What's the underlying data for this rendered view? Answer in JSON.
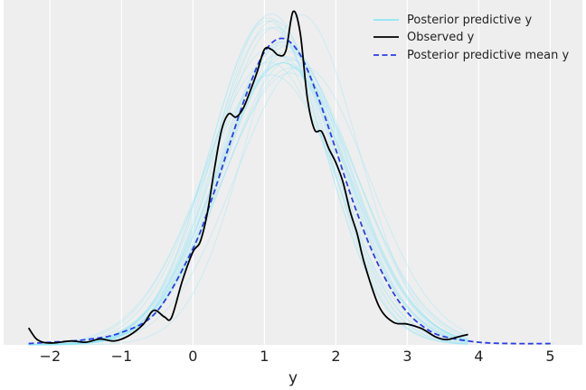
{
  "chart_data": {
    "type": "line",
    "title": "",
    "xlabel": "y",
    "ylabel": "",
    "xlim": [
      -2.65,
      5.45
    ],
    "ylim": [
      0,
      0.53
    ],
    "xticks": [
      -2,
      -1,
      0,
      1,
      2,
      3,
      4,
      5
    ],
    "xtick_labels": [
      "−2",
      "−1",
      "0",
      "1",
      "2",
      "3",
      "4",
      "5"
    ],
    "grid": true,
    "legend_position": "top-right",
    "colors": {
      "background": "#eeeeee",
      "grid": "#ffffff",
      "posterior_predictive": "#8ee6f6",
      "observed": "#000000",
      "mean": "#2a3de6"
    },
    "series": [
      {
        "name": "Posterior predictive mean y",
        "style": "dashed",
        "x": [
          -2.3,
          -2.0,
          -1.5,
          -1.0,
          -0.5,
          0.0,
          0.25,
          0.5,
          0.75,
          1.0,
          1.25,
          1.5,
          1.75,
          2.0,
          2.25,
          2.5,
          2.75,
          3.0,
          3.25,
          3.5,
          4.0,
          4.5,
          5.05
        ],
        "y": [
          0.002,
          0.004,
          0.008,
          0.019,
          0.052,
          0.148,
          0.22,
          0.304,
          0.386,
          0.45,
          0.471,
          0.446,
          0.381,
          0.3,
          0.217,
          0.146,
          0.09,
          0.05,
          0.026,
          0.013,
          0.004,
          0.002,
          0.002
        ]
      },
      {
        "name": "Observed y",
        "style": "solid",
        "x": [
          -2.3,
          -2.2,
          -2.1,
          -1.95,
          -1.7,
          -1.5,
          -1.3,
          -1.1,
          -0.9,
          -0.7,
          -0.55,
          -0.4,
          -0.3,
          -0.15,
          0.0,
          0.1,
          0.2,
          0.3,
          0.4,
          0.5,
          0.6,
          0.7,
          0.8,
          0.9,
          1.0,
          1.1,
          1.2,
          1.3,
          1.4,
          1.5,
          1.6,
          1.7,
          1.8,
          1.9,
          2.0,
          2.1,
          2.2,
          2.3,
          2.4,
          2.6,
          2.8,
          3.0,
          3.2,
          3.4,
          3.55,
          3.7,
          3.85
        ],
        "y": [
          0.026,
          0.01,
          0.004,
          0.003,
          0.006,
          0.004,
          0.009,
          0.006,
          0.014,
          0.031,
          0.053,
          0.043,
          0.042,
          0.098,
          0.143,
          0.158,
          0.202,
          0.27,
          0.33,
          0.355,
          0.35,
          0.363,
          0.39,
          0.42,
          0.454,
          0.454,
          0.445,
          0.452,
          0.512,
          0.48,
          0.38,
          0.331,
          0.328,
          0.302,
          0.28,
          0.25,
          0.205,
          0.17,
          0.125,
          0.06,
          0.035,
          0.032,
          0.025,
          0.012,
          0.008,
          0.012,
          0.016
        ]
      }
    ],
    "posterior_predictive_samples": {
      "name": "Posterior predictive y",
      "count": 24,
      "x_range": [
        -2.3,
        3.85
      ],
      "peak_x_range": [
        1.0,
        1.55
      ],
      "peak_y_range": [
        0.41,
        0.51
      ]
    }
  }
}
